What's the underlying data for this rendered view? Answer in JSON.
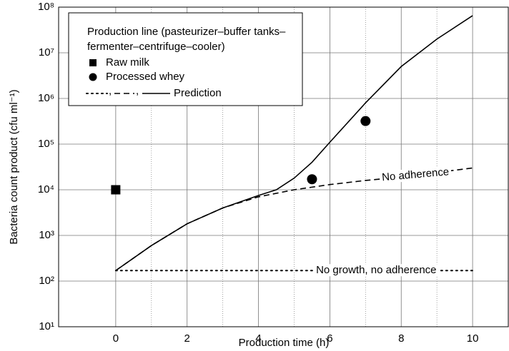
{
  "chart_data": {
    "type": "line",
    "xlabel": "Production time (h)",
    "ylabel": "Bacteria count product (cfu ml⁻¹)",
    "xlim": [
      -1.6,
      11
    ],
    "xticks": [
      0,
      2,
      4,
      6,
      8,
      10
    ],
    "xminor_ticks": [
      1,
      3,
      5,
      7,
      9
    ],
    "ylim": [
      10,
      100000000
    ],
    "yscale": "log",
    "yticks": [
      {
        "value": 10,
        "label": "10¹"
      },
      {
        "value": 100,
        "label": "10²"
      },
      {
        "value": 1000,
        "label": "10³"
      },
      {
        "value": 10000,
        "label": "10⁴"
      },
      {
        "value": 100000,
        "label": "10⁵"
      },
      {
        "value": 1000000,
        "label": "10⁶"
      },
      {
        "value": 10000000,
        "label": "10⁷"
      },
      {
        "value": 100000000,
        "label": "10⁸"
      }
    ],
    "grid": true,
    "legend": {
      "title_lines": [
        "Production line (pasteurizer–buffer tanks–",
        "fermenter–centrifuge–cooler)"
      ],
      "separator": ",",
      "prediction_label": "Prediction"
    },
    "series": [
      {
        "name": "Raw milk",
        "marker": "square",
        "color": "#000000",
        "x": [
          0
        ],
        "values": [
          10000
        ]
      },
      {
        "name": "Processed whey",
        "marker": "circle",
        "color": "#000000",
        "x": [
          5.5,
          7
        ],
        "values": [
          17000,
          320000
        ]
      },
      {
        "style": "dotted",
        "color": "#000000",
        "x": [
          0,
          10
        ],
        "values": [
          170,
          170
        ]
      },
      {
        "style": "dashed",
        "color": "#000000",
        "x": [
          0,
          1,
          2,
          3,
          4,
          5,
          6,
          7,
          8,
          9,
          10
        ],
        "values": [
          170,
          600,
          1800,
          4000,
          7000,
          10000,
          13000,
          16000,
          19000,
          24000,
          30000
        ]
      },
      {
        "style": "solid",
        "color": "#000000",
        "x": [
          0,
          1,
          2,
          3,
          4,
          4.5,
          5,
          5.5,
          6,
          7,
          8,
          9,
          10
        ],
        "values": [
          170,
          600,
          1800,
          4000,
          7500,
          10000,
          18000,
          40000,
          110000,
          800000,
          5000000,
          20000000,
          65000000
        ]
      }
    ],
    "annotations": [
      {
        "text": "No adherence",
        "x": 8.4,
        "y": 21000
      },
      {
        "text": "No growth, no adherence",
        "x": 7.3,
        "y": 170
      }
    ]
  }
}
